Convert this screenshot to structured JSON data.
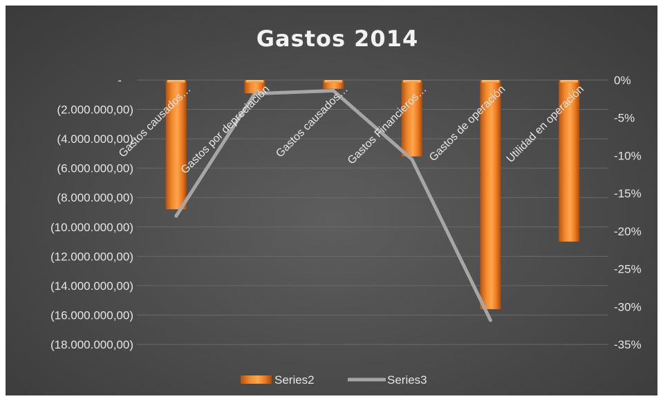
{
  "chart_data": {
    "type": "bar",
    "title": "Gastos 2014",
    "categories": [
      "Gastos causados…",
      "Gastos por depreciación",
      "Gastos causados…",
      "Gastos Financieros…",
      "Gastos de operación",
      "Utilidad en operación"
    ],
    "series": [
      {
        "name": "Series2",
        "type": "bar",
        "axis": "left",
        "color": "#ed7d31",
        "values": [
          -8800000,
          -900000,
          -600000,
          -5200000,
          -15600000,
          -11000000
        ]
      },
      {
        "name": "Series3",
        "type": "line",
        "axis": "right",
        "color": "#a6a6a6",
        "values": [
          -18,
          -1.8,
          -1.4,
          -10.5,
          -31.8,
          null
        ]
      }
    ],
    "y_left": {
      "min": -18000000,
      "max": 0,
      "tick_values": [
        0,
        -2000000,
        -4000000,
        -6000000,
        -8000000,
        -10000000,
        -12000000,
        -14000000,
        -16000000,
        -18000000
      ],
      "tick_labels": [
        "-",
        "(2.000.000,00)",
        "(4.000.000,00)",
        "(6.000.000,00)",
        "(8.000.000,00)",
        "(10.000.000,00)",
        "(12.000.000,00)",
        "(14.000.000,00)",
        "(16.000.000,00)",
        "(18.000.000,00)"
      ]
    },
    "y_right": {
      "min": -35,
      "max": 0,
      "tick_values": [
        0,
        -5,
        -10,
        -15,
        -20,
        -25,
        -30,
        -35
      ],
      "tick_labels": [
        "0%",
        "-5%",
        "-10%",
        "-15%",
        "-20%",
        "-25%",
        "-30%",
        "-35%"
      ]
    },
    "grid": true,
    "legend_position": "bottom",
    "colors": {
      "background": "#4a4a4a",
      "grid": "#6a6a6a",
      "text": "#e6e6e6"
    }
  }
}
